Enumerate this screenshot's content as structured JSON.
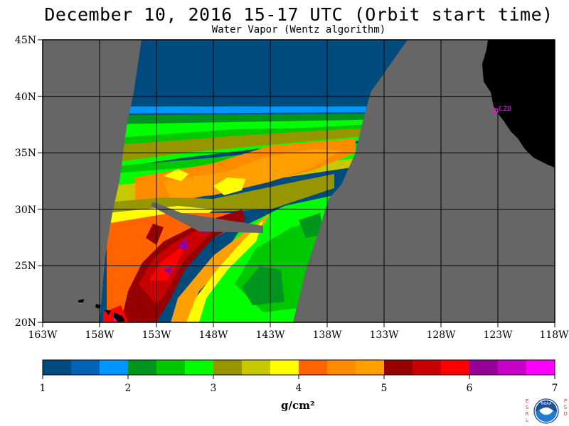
{
  "header": {
    "title": "December 10, 2016  15-17 UTC  (Orbit start time)",
    "subtitle": "Water Vapor (Wentz algorithm)"
  },
  "map": {
    "lat_labels": [
      "45N",
      "40N",
      "35N",
      "30N",
      "25N",
      "20N"
    ],
    "lon_labels": [
      "163W",
      "158W",
      "153W",
      "148W",
      "143W",
      "138W",
      "133W",
      "128W",
      "123W",
      "118W"
    ],
    "lat_range": [
      20,
      45
    ],
    "lon_range": [
      -163,
      -118
    ],
    "station_label": "CZD",
    "station_color": "#ff00ff",
    "no_data_color": "#666666",
    "land_color": "#000000"
  },
  "colorbar": {
    "colors": [
      "#004b7d",
      "#0064b4",
      "#0096ff",
      "#00961e",
      "#00c800",
      "#00ff00",
      "#969600",
      "#c8c800",
      "#ffff00",
      "#ff6400",
      "#ff8c00",
      "#ffa000",
      "#960000",
      "#c80000",
      "#ff0000",
      "#960096",
      "#c800c8",
      "#ff00ff"
    ],
    "tick_labels": [
      "1",
      "2",
      "3",
      "4",
      "5",
      "6",
      "7"
    ],
    "units": "g/cm²"
  },
  "logo": {
    "left_letters": "ESRL",
    "right_letters": "PSD",
    "name": "NOAA"
  }
}
